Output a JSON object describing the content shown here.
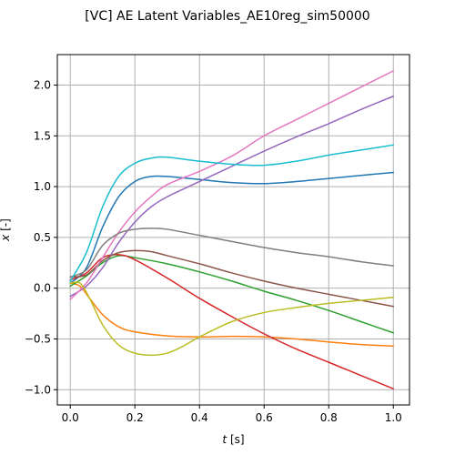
{
  "chart_data": {
    "type": "line",
    "title": "[VC] AE Latent Variables_AE10reg_sim50000",
    "xlabel_var": "t",
    "xlabel_unit": " [s]",
    "ylabel_var": "x",
    "ylabel_unit": " [-]",
    "xlim": [
      -0.04,
      1.05
    ],
    "ylim": [
      -1.15,
      2.3
    ],
    "xticks": [
      0.0,
      0.2,
      0.4,
      0.6,
      0.8,
      1.0
    ],
    "xtick_labels": [
      "0.0",
      "0.2",
      "0.4",
      "0.6",
      "0.8",
      "1.0"
    ],
    "yticks": [
      -1.0,
      -0.5,
      0.0,
      0.5,
      1.0,
      1.5,
      2.0
    ],
    "ytick_labels": [
      "−1.0",
      "−0.5",
      "0.0",
      "0.5",
      "1.0",
      "1.5",
      "2.0"
    ],
    "grid": true,
    "series": [
      {
        "color": "#1f77b4",
        "points": [
          [
            0,
            0.05
          ],
          [
            0.05,
            0.2
          ],
          [
            0.1,
            0.6
          ],
          [
            0.15,
            0.9
          ],
          [
            0.2,
            1.05
          ],
          [
            0.25,
            1.1
          ],
          [
            0.3,
            1.1
          ],
          [
            0.4,
            1.07
          ],
          [
            0.5,
            1.04
          ],
          [
            0.6,
            1.03
          ],
          [
            0.7,
            1.05
          ],
          [
            0.8,
            1.08
          ],
          [
            0.9,
            1.11
          ],
          [
            1.0,
            1.14
          ]
        ]
      },
      {
        "color": "#ff7f0e",
        "points": [
          [
            0,
            0.05
          ],
          [
            0.03,
            0.02
          ],
          [
            0.06,
            -0.1
          ],
          [
            0.1,
            -0.26
          ],
          [
            0.15,
            -0.38
          ],
          [
            0.2,
            -0.43
          ],
          [
            0.3,
            -0.47
          ],
          [
            0.4,
            -0.48
          ],
          [
            0.5,
            -0.475
          ],
          [
            0.6,
            -0.48
          ],
          [
            0.7,
            -0.5
          ],
          [
            0.8,
            -0.53
          ],
          [
            0.9,
            -0.555
          ],
          [
            1.0,
            -0.57
          ]
        ]
      },
      {
        "color": "#2ca02c",
        "points": [
          [
            0,
            0.02
          ],
          [
            0.05,
            0.12
          ],
          [
            0.1,
            0.25
          ],
          [
            0.15,
            0.32
          ],
          [
            0.2,
            0.3
          ],
          [
            0.3,
            0.24
          ],
          [
            0.4,
            0.16
          ],
          [
            0.5,
            0.07
          ],
          [
            0.6,
            -0.03
          ],
          [
            0.7,
            -0.12
          ],
          [
            0.8,
            -0.22
          ],
          [
            0.9,
            -0.33
          ],
          [
            1.0,
            -0.44
          ]
        ]
      },
      {
        "color": "#d62728",
        "points": [
          [
            0,
            0.08
          ],
          [
            0.05,
            0.15
          ],
          [
            0.1,
            0.3
          ],
          [
            0.15,
            0.33
          ],
          [
            0.2,
            0.28
          ],
          [
            0.3,
            0.1
          ],
          [
            0.4,
            -0.1
          ],
          [
            0.5,
            -0.28
          ],
          [
            0.6,
            -0.45
          ],
          [
            0.7,
            -0.6
          ],
          [
            0.8,
            -0.73
          ],
          [
            0.9,
            -0.86
          ],
          [
            1.0,
            -0.99
          ]
        ]
      },
      {
        "color": "#9467bd",
        "points": [
          [
            0,
            -0.08
          ],
          [
            0.05,
            0.02
          ],
          [
            0.1,
            0.2
          ],
          [
            0.15,
            0.45
          ],
          [
            0.2,
            0.65
          ],
          [
            0.25,
            0.8
          ],
          [
            0.3,
            0.9
          ],
          [
            0.4,
            1.05
          ],
          [
            0.5,
            1.2
          ],
          [
            0.6,
            1.35
          ],
          [
            0.7,
            1.49
          ],
          [
            0.8,
            1.62
          ],
          [
            0.9,
            1.76
          ],
          [
            1.0,
            1.89
          ]
        ]
      },
      {
        "color": "#8c564b",
        "points": [
          [
            0,
            0.11
          ],
          [
            0.05,
            0.13
          ],
          [
            0.1,
            0.27
          ],
          [
            0.15,
            0.35
          ],
          [
            0.2,
            0.37
          ],
          [
            0.25,
            0.36
          ],
          [
            0.3,
            0.32
          ],
          [
            0.4,
            0.24
          ],
          [
            0.5,
            0.15
          ],
          [
            0.6,
            0.07
          ],
          [
            0.7,
            0.0
          ],
          [
            0.8,
            -0.06
          ],
          [
            0.9,
            -0.12
          ],
          [
            1.0,
            -0.18
          ]
        ]
      },
      {
        "color": "#e377c2",
        "points": [
          [
            0,
            -0.11
          ],
          [
            0.05,
            0.05
          ],
          [
            0.1,
            0.3
          ],
          [
            0.15,
            0.55
          ],
          [
            0.2,
            0.75
          ],
          [
            0.25,
            0.9
          ],
          [
            0.3,
            1.02
          ],
          [
            0.4,
            1.15
          ],
          [
            0.5,
            1.3
          ],
          [
            0.6,
            1.5
          ],
          [
            0.7,
            1.66
          ],
          [
            0.8,
            1.82
          ],
          [
            0.9,
            1.98
          ],
          [
            1.0,
            2.14
          ]
        ]
      },
      {
        "color": "#7f7f7f",
        "points": [
          [
            0,
            0.11
          ],
          [
            0.05,
            0.18
          ],
          [
            0.1,
            0.42
          ],
          [
            0.15,
            0.54
          ],
          [
            0.2,
            0.58
          ],
          [
            0.25,
            0.59
          ],
          [
            0.3,
            0.58
          ],
          [
            0.4,
            0.52
          ],
          [
            0.5,
            0.46
          ],
          [
            0.6,
            0.4
          ],
          [
            0.7,
            0.35
          ],
          [
            0.8,
            0.31
          ],
          [
            0.9,
            0.26
          ],
          [
            1.0,
            0.22
          ]
        ]
      },
      {
        "color": "#bcbd22",
        "points": [
          [
            0,
            0.05
          ],
          [
            0.03,
            0.05
          ],
          [
            0.06,
            -0.1
          ],
          [
            0.1,
            -0.36
          ],
          [
            0.15,
            -0.56
          ],
          [
            0.2,
            -0.64
          ],
          [
            0.25,
            -0.66
          ],
          [
            0.3,
            -0.64
          ],
          [
            0.35,
            -0.57
          ],
          [
            0.4,
            -0.48
          ],
          [
            0.5,
            -0.33
          ],
          [
            0.6,
            -0.24
          ],
          [
            0.7,
            -0.19
          ],
          [
            0.8,
            -0.15
          ],
          [
            0.9,
            -0.12
          ],
          [
            1.0,
            -0.09
          ]
        ]
      },
      {
        "color": "#17becf",
        "points": [
          [
            0,
            0.07
          ],
          [
            0.05,
            0.35
          ],
          [
            0.1,
            0.8
          ],
          [
            0.15,
            1.1
          ],
          [
            0.2,
            1.23
          ],
          [
            0.25,
            1.28
          ],
          [
            0.3,
            1.29
          ],
          [
            0.4,
            1.25
          ],
          [
            0.5,
            1.22
          ],
          [
            0.6,
            1.21
          ],
          [
            0.7,
            1.25
          ],
          [
            0.8,
            1.31
          ],
          [
            0.9,
            1.36
          ],
          [
            1.0,
            1.41
          ]
        ]
      }
    ]
  }
}
